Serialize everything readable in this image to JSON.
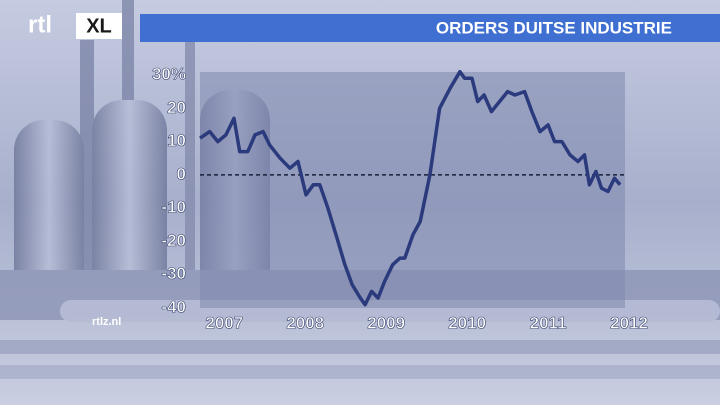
{
  "logo": "rtl",
  "logo_badge": "XL",
  "watermark": "rtlz.nl",
  "chart_data": {
    "type": "line",
    "title": "ORDERS DUITSE INDUSTRIE",
    "x": [
      2006.7,
      2006.82,
      2006.92,
      2007.02,
      2007.12,
      2007.19,
      2007.29,
      2007.38,
      2007.48,
      2007.56,
      2007.69,
      2007.81,
      2007.91,
      2008.01,
      2008.1,
      2008.18,
      2008.28,
      2008.38,
      2008.49,
      2008.58,
      2008.68,
      2008.74,
      2008.82,
      2008.9,
      2008.98,
      2009.08,
      2009.17,
      2009.23,
      2009.33,
      2009.42,
      2009.54,
      2009.66,
      2009.79,
      2009.91,
      2009.97,
      2010.06,
      2010.13,
      2010.21,
      2010.3,
      2010.4,
      2010.5,
      2010.59,
      2010.71,
      2010.8,
      2010.9,
      2011.0,
      2011.08,
      2011.17,
      2011.27,
      2011.37,
      2011.45,
      2011.51,
      2011.59,
      2011.66,
      2011.74,
      2011.82,
      2011.89
    ],
    "series": [
      {
        "color": "#2b3a7c",
        "values": [
          11,
          13,
          10,
          12,
          17,
          7,
          7,
          12,
          13,
          9,
          5,
          2,
          4,
          -6,
          -3,
          -3,
          -10,
          -18,
          -27,
          -33,
          -37,
          -39,
          -35,
          -37,
          -32,
          -27,
          -25,
          -25,
          -18,
          -14,
          0,
          20,
          26,
          31,
          29,
          29,
          22,
          24,
          19,
          22,
          25,
          24,
          25,
          19,
          13,
          15,
          10,
          10,
          6,
          4,
          6,
          -3,
          1,
          -4,
          -5,
          -1,
          -3
        ]
      }
    ],
    "xlim": [
      2006.7,
      2011.95
    ],
    "xticks": [
      2007,
      2008,
      2009,
      2010,
      2011,
      2012
    ],
    "ylim": [
      -40,
      30
    ],
    "yticks": [
      -40,
      -30,
      -20,
      -10,
      0,
      10,
      20,
      {
        "value": 30,
        "label": "30%"
      }
    ],
    "hline": 0
  }
}
